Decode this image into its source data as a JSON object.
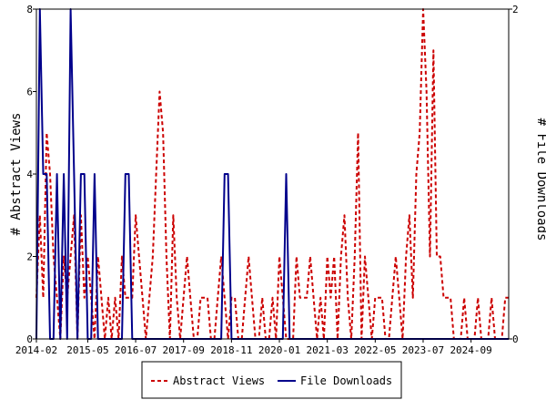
{
  "chart_data": {
    "type": "line",
    "x_ticks": [
      "2014-02",
      "2015-05",
      "2016-07",
      "2017-09",
      "2018-11",
      "2020-01",
      "2021-03",
      "2022-05",
      "2023-07",
      "2024-09"
    ],
    "x_range": [
      "2014-02",
      "2025-08"
    ],
    "y_left": {
      "label": "# Abstract Views",
      "ticks": [
        "0",
        "2",
        "4",
        "6",
        "8"
      ],
      "range": [
        0,
        8
      ]
    },
    "y_right": {
      "label": "# File Downloads",
      "ticks": [
        "0",
        "2"
      ],
      "range": [
        0,
        2
      ]
    },
    "series": [
      {
        "name": "Abstract Views",
        "axis": "left",
        "color": "#cc0000",
        "style": "dashed",
        "x": [
          "2014-02",
          "2014-03",
          "2014-04",
          "2014-05",
          "2014-06",
          "2014-07",
          "2014-08",
          "2014-09",
          "2014-10",
          "2014-11",
          "2014-12",
          "2015-01",
          "2015-02",
          "2015-03",
          "2015-04",
          "2015-05",
          "2015-06",
          "2015-07",
          "2015-08",
          "2015-09",
          "2015-10",
          "2015-11",
          "2015-12",
          "2016-01",
          "2016-02",
          "2016-03",
          "2016-04",
          "2016-05",
          "2016-06",
          "2016-07",
          "2016-08",
          "2016-09",
          "2016-10",
          "2016-11",
          "2016-12",
          "2017-01",
          "2017-02",
          "2017-03",
          "2017-04",
          "2017-05",
          "2017-06",
          "2017-07",
          "2017-08",
          "2017-09",
          "2017-10",
          "2017-11",
          "2017-12",
          "2018-01",
          "2018-02",
          "2018-03",
          "2018-04",
          "2018-05",
          "2018-06",
          "2018-07",
          "2018-08",
          "2018-09",
          "2018-10",
          "2018-11",
          "2018-12",
          "2019-01",
          "2019-02",
          "2019-03",
          "2019-04",
          "2019-05",
          "2019-06",
          "2019-07",
          "2019-08",
          "2019-09",
          "2019-10",
          "2019-11",
          "2019-12",
          "2020-01",
          "2020-02",
          "2020-03",
          "2020-04",
          "2020-05",
          "2020-06",
          "2020-07",
          "2020-08",
          "2020-09",
          "2020-10",
          "2020-11",
          "2020-12",
          "2021-01",
          "2021-02",
          "2021-03",
          "2021-04",
          "2021-05",
          "2021-06",
          "2021-07",
          "2021-08",
          "2021-09",
          "2021-10",
          "2021-11",
          "2021-12",
          "2022-01",
          "2022-02",
          "2022-03",
          "2022-04",
          "2022-05",
          "2022-06",
          "2022-07",
          "2022-08",
          "2022-09",
          "2022-10",
          "2022-11",
          "2022-12",
          "2023-01",
          "2023-02",
          "2023-03",
          "2023-04",
          "2023-05",
          "2023-06",
          "2023-07",
          "2023-08",
          "2023-09",
          "2023-10",
          "2023-11",
          "2023-12",
          "2024-01",
          "2024-02",
          "2024-03",
          "2024-04",
          "2024-05",
          "2024-06",
          "2024-07",
          "2024-08",
          "2024-09",
          "2024-10",
          "2024-11",
          "2024-12",
          "2025-01",
          "2025-02",
          "2025-03",
          "2025-04",
          "2025-05",
          "2025-06",
          "2025-07",
          "2025-08"
        ],
        "y": [
          1,
          3,
          1,
          5,
          4,
          2,
          1,
          0,
          2,
          1,
          2,
          3,
          0,
          3,
          1,
          2,
          1,
          0,
          2,
          1,
          0,
          1,
          0,
          1,
          0,
          2,
          1,
          1,
          1,
          3,
          2,
          1,
          0,
          1,
          2,
          4,
          6,
          5,
          2,
          0,
          3,
          1,
          0,
          1,
          2,
          1,
          0,
          0,
          1,
          1,
          1,
          0,
          0,
          1,
          2,
          1,
          0,
          1,
          1,
          0,
          0,
          1,
          2,
          1,
          0,
          0,
          1,
          0,
          0,
          1,
          0,
          2,
          1,
          0,
          0,
          0,
          2,
          1,
          1,
          1,
          2,
          1,
          0,
          1,
          0,
          2,
          1,
          2,
          0,
          2,
          3,
          1,
          0,
          2,
          5,
          0,
          2,
          1,
          0,
          1,
          1,
          1,
          0,
          0,
          1,
          2,
          1,
          0,
          2,
          3,
          1,
          4,
          5,
          8,
          6,
          2,
          7,
          2,
          2,
          1,
          1,
          1,
          0,
          0,
          0,
          1,
          0,
          0,
          0,
          1,
          0,
          0,
          0,
          1,
          0,
          0,
          0,
          1,
          1
        ]
      },
      {
        "name": "File Downloads",
        "axis": "right",
        "color": "#00008b",
        "style": "solid",
        "x": [
          "2014-02",
          "2014-03",
          "2014-04",
          "2014-05",
          "2014-06",
          "2014-07",
          "2014-08",
          "2014-09",
          "2014-10",
          "2014-11",
          "2014-12",
          "2015-01",
          "2015-02",
          "2015-03",
          "2015-04",
          "2015-05",
          "2015-06",
          "2015-07",
          "2015-08",
          "2015-09",
          "2015-10",
          "2015-11",
          "2015-12",
          "2016-01",
          "2016-02",
          "2016-03",
          "2016-04",
          "2016-05",
          "2016-06",
          "2016-07",
          "2016-08",
          "2016-09",
          "2016-10",
          "2016-11",
          "2016-12",
          "2017-01",
          "2017-02",
          "2017-03",
          "2017-04",
          "2017-05",
          "2017-06",
          "2017-07",
          "2017-08",
          "2017-09",
          "2017-10",
          "2017-11",
          "2017-12",
          "2018-01",
          "2018-02",
          "2018-03",
          "2018-04",
          "2018-05",
          "2018-06",
          "2018-07",
          "2018-08",
          "2018-09",
          "2018-10",
          "2018-11",
          "2018-12",
          "2019-01",
          "2019-02",
          "2019-03",
          "2019-04",
          "2019-05",
          "2019-06",
          "2019-07",
          "2019-08",
          "2019-09",
          "2019-10",
          "2019-11",
          "2019-12",
          "2020-01",
          "2020-02",
          "2020-03",
          "2020-04",
          "2020-05",
          "2020-06",
          "2020-07",
          "2020-08",
          "2020-09",
          "2020-10",
          "2020-11",
          "2020-12",
          "2021-01",
          "2021-02",
          "2021-03",
          "2021-04",
          "2021-05",
          "2021-06",
          "2021-07",
          "2021-08",
          "2021-09",
          "2021-10",
          "2021-11",
          "2021-12",
          "2022-01",
          "2022-02",
          "2022-03",
          "2022-04",
          "2022-05",
          "2022-06",
          "2022-07",
          "2022-08",
          "2022-09",
          "2022-10",
          "2022-11",
          "2022-12",
          "2023-01",
          "2023-02",
          "2023-03",
          "2023-04",
          "2023-05",
          "2023-06",
          "2023-07",
          "2023-08",
          "2023-09",
          "2023-10",
          "2023-11",
          "2023-12",
          "2024-01",
          "2024-02",
          "2024-03",
          "2024-04",
          "2024-05",
          "2024-06",
          "2024-07",
          "2024-08",
          "2024-09",
          "2024-10",
          "2024-11",
          "2024-12",
          "2025-01",
          "2025-02",
          "2025-03",
          "2025-04",
          "2025-05",
          "2025-06",
          "2025-07",
          "2025-08"
        ],
        "y": [
          0,
          2,
          1,
          1,
          0,
          0,
          1,
          0,
          1,
          0,
          2,
          1,
          0,
          1,
          1,
          0,
          0,
          1,
          0,
          0,
          0,
          0,
          0,
          0,
          0,
          0,
          1,
          1,
          0,
          0,
          0,
          0,
          0,
          0,
          0,
          0,
          0,
          0,
          0,
          0,
          0,
          0,
          0,
          0,
          0,
          0,
          0,
          0,
          0,
          0,
          0,
          0,
          0,
          0,
          0,
          1,
          1,
          0,
          0,
          0,
          0,
          0,
          0,
          0,
          0,
          0,
          0,
          0,
          0,
          0,
          0,
          0,
          0,
          1,
          0,
          0,
          0,
          0,
          0,
          0,
          0,
          0,
          0,
          0,
          0,
          0,
          0,
          0,
          0,
          0,
          0,
          0,
          0,
          0,
          0,
          0,
          0,
          0,
          0,
          0,
          0,
          0,
          0,
          0,
          0,
          0,
          0,
          0,
          0,
          0,
          0,
          0,
          0,
          0,
          0,
          0,
          0,
          0,
          0,
          0,
          0,
          0,
          0,
          0,
          0,
          0,
          0,
          0,
          0,
          0,
          0,
          0,
          0,
          0,
          0,
          0,
          0,
          0,
          0
        ]
      }
    ],
    "legend_position": "bottom",
    "grid": false
  }
}
